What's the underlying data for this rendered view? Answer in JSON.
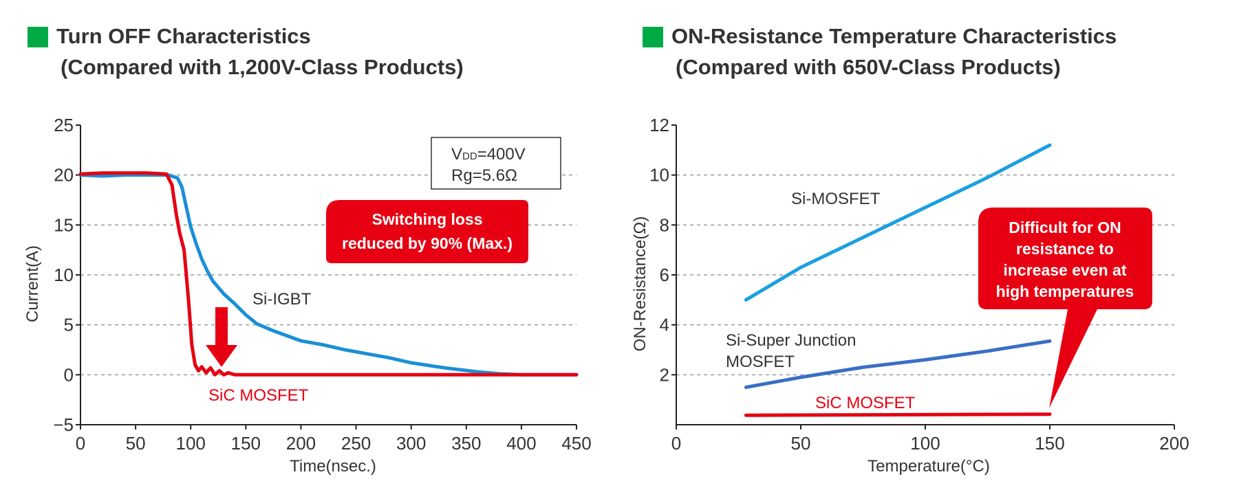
{
  "colors": {
    "square": "#00aa44",
    "title_text": "#333333",
    "axis": "#222222",
    "grid": "#999999",
    "si_igbt": "#1a8fd6",
    "sic": "#e60012",
    "si_mosfet": "#1aa0e0",
    "si_sj": "#3a6fc4",
    "callout": "#e60012"
  },
  "chart_data": [
    {
      "type": "line",
      "title": "Turn OFF Characteristics",
      "subtitle": "(Compared with 1,200V-Class Products)",
      "xlabel": "Time(nsec.)",
      "ylabel": "Current(A)",
      "xlim": [
        0,
        450
      ],
      "ylim": [
        -5,
        25
      ],
      "xticks": [
        "0",
        "50",
        "100",
        "150",
        "200",
        "250",
        "300",
        "350",
        "400",
        "450"
      ],
      "yticks": [
        "25",
        "20",
        "15",
        "10",
        "5",
        "0",
        "−5"
      ],
      "grid": "horizontal dashed at 0, 5, 10, 15, 20",
      "conditions": {
        "vdd": "VDD=400V",
        "vdd_main": "V",
        "vdd_sub": "DD",
        "vdd_value": "=400V",
        "rg": "Rg=5.6Ω"
      },
      "callout": [
        "Switching loss",
        "reduced by 90% (Max.)"
      ],
      "series": [
        {
          "name": "Si-IGBT",
          "color": "#1a8fd6",
          "x": [
            0,
            20,
            40,
            60,
            80,
            88,
            92,
            96,
            100,
            105,
            110,
            115,
            120,
            130,
            140,
            150,
            160,
            175,
            190,
            200,
            220,
            240,
            260,
            280,
            300,
            330,
            360,
            380,
            400,
            420,
            450
          ],
          "y": [
            20,
            19.9,
            20,
            20,
            20,
            19.7,
            18.8,
            16.8,
            14.8,
            13.1,
            11.6,
            10.4,
            9.4,
            8.1,
            7.1,
            6.0,
            5.1,
            4.4,
            3.8,
            3.4,
            3.0,
            2.5,
            2.1,
            1.7,
            1.2,
            0.7,
            0.3,
            0.1,
            0.0,
            0.0,
            0.0
          ]
        },
        {
          "name": "SiC MOSFET",
          "color": "#e60012",
          "x": [
            0,
            20,
            40,
            60,
            78,
            83,
            87,
            90,
            94,
            98,
            101,
            104,
            107,
            110,
            114,
            118,
            122,
            126,
            130,
            134,
            140,
            150,
            200,
            300,
            450
          ],
          "y": [
            20.1,
            20.2,
            20.2,
            20.2,
            20.1,
            19,
            16,
            14.2,
            12.5,
            7.5,
            3,
            1.0,
            0.4,
            0.8,
            0.2,
            0.7,
            0.0,
            0.4,
            0.0,
            0.2,
            0.0,
            0.0,
            0.0,
            0.0,
            0.0
          ]
        }
      ]
    },
    {
      "type": "line",
      "title": "ON-Resistance Temperature Characteristics",
      "subtitle": "(Compared with 650V-Class Products)",
      "xlabel": "Temperature(°C)",
      "ylabel": "ON-Resistance(Ω)",
      "xlim": [
        0,
        200
      ],
      "ylim": [
        0,
        12
      ],
      "xticks": [
        "0",
        "50",
        "100",
        "150",
        "200"
      ],
      "yticks": [
        "12",
        "10",
        "8",
        "6",
        "4",
        "2"
      ],
      "grid": "horizontal dashed at 2, 4, 6, 8, 10",
      "callout": [
        "Difficult for ON",
        "resistance to",
        "increase even at",
        "high temperatures"
      ],
      "series": [
        {
          "name": "Si-MOSFET",
          "color": "#1aa0e0",
          "x": [
            28,
            50,
            75,
            100,
            125,
            150
          ],
          "y": [
            5.0,
            6.3,
            7.5,
            8.7,
            9.9,
            11.2
          ]
        },
        {
          "name_lines": [
            "Si-Super Junction",
            "MOSFET"
          ],
          "color": "#3a6fc4",
          "x": [
            28,
            50,
            75,
            100,
            125,
            150
          ],
          "y": [
            1.5,
            1.9,
            2.3,
            2.6,
            2.95,
            3.35
          ]
        },
        {
          "name": "SiC MOSFET",
          "color": "#e60012",
          "x": [
            28,
            150
          ],
          "y": [
            0.38,
            0.42
          ]
        }
      ]
    }
  ]
}
